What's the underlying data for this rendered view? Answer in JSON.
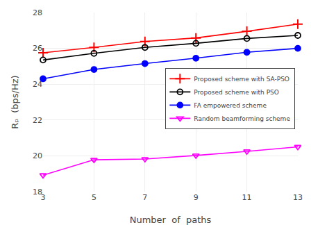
{
  "chart_data": {
    "type": "line",
    "x": [
      3,
      5,
      7,
      9,
      11,
      13
    ],
    "series": [
      {
        "name": "Proposed scheme with SA-PSO",
        "color": "#ff0000",
        "marker": "plus",
        "values": [
          25.75,
          26.05,
          26.38,
          26.58,
          26.95,
          27.35
        ]
      },
      {
        "name": "Proposed scheme with PSO",
        "color": "#000000",
        "marker": "circle-open",
        "values": [
          25.35,
          25.72,
          26.05,
          26.28,
          26.55,
          26.72
        ]
      },
      {
        "name": "FA empowered scheme",
        "color": "#0000ff",
        "marker": "circle",
        "values": [
          24.3,
          24.82,
          25.15,
          25.45,
          25.78,
          26.0
        ]
      },
      {
        "name": "Random beamforming scheme",
        "color": "#ff00ff",
        "marker": "triangle-down-open",
        "values": [
          18.92,
          19.78,
          19.82,
          20.02,
          20.25,
          20.5
        ]
      }
    ],
    "xlabel": "Number  of  paths",
    "ylabel": "Rₚ  (bps/Hz)",
    "xlim": [
      3,
      13
    ],
    "xticks": [
      3,
      5,
      7,
      9,
      11,
      13
    ],
    "ylim": [
      18,
      28
    ],
    "yticks": [
      18,
      20,
      22,
      24,
      26,
      28
    ],
    "grid": true,
    "legend": "right"
  }
}
